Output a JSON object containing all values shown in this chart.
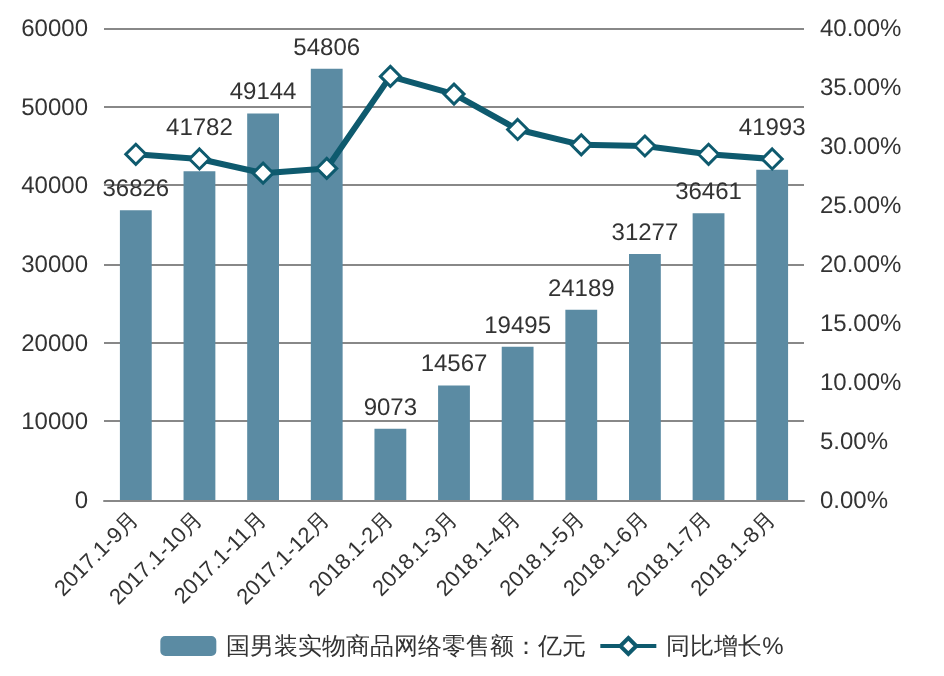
{
  "chart_data": {
    "type": "bar",
    "categories": [
      "2017.1-9月",
      "2017.1-10月",
      "2017.1-11月",
      "2017.1-12月",
      "2018.1-2月",
      "2018.1-3月",
      "2018.1-4月",
      "2018.1-5月",
      "2018.1-6月",
      "2018.1-7月",
      "2018.1-8月"
    ],
    "series": [
      {
        "name": "国男装实物商品网络零售额：亿元",
        "color": "#5b8ba3",
        "values": [
          36826,
          41782,
          49144,
          54806,
          9073,
          14567,
          19495,
          24189,
          31277,
          36461,
          41993
        ],
        "value_labels": [
          "36826",
          "41782",
          "49144",
          "54806",
          "9073",
          "14567",
          "19495",
          "24189",
          "31277",
          "36461",
          "41993"
        ]
      },
      {
        "name": "同比增长%",
        "type": "line",
        "axis": "y2",
        "color": "#0e5a6e",
        "marker": "diamond",
        "values": [
          29.3,
          28.9,
          27.7,
          28.1,
          35.9,
          34.4,
          31.4,
          30.1,
          30.0,
          29.3,
          28.9
        ]
      }
    ],
    "ylim": [
      0,
      60000
    ],
    "yticks": [
      0,
      10000,
      20000,
      30000,
      40000,
      50000,
      60000
    ],
    "y2lim": [
      0,
      40
    ],
    "y2ticks": [
      {
        "value": 0,
        "label": "0.00%"
      },
      {
        "value": 5,
        "label": "5.00%"
      },
      {
        "value": 10,
        "label": "10.00%"
      },
      {
        "value": 15,
        "label": "15.00%"
      },
      {
        "value": 20,
        "label": "20.00%"
      },
      {
        "value": 25,
        "label": "25.00%"
      },
      {
        "value": 30,
        "label": "30.00%"
      },
      {
        "value": 35,
        "label": "35.00%"
      },
      {
        "value": 40,
        "label": "40.00%"
      }
    ],
    "grid": "y",
    "legend": "bottom"
  }
}
